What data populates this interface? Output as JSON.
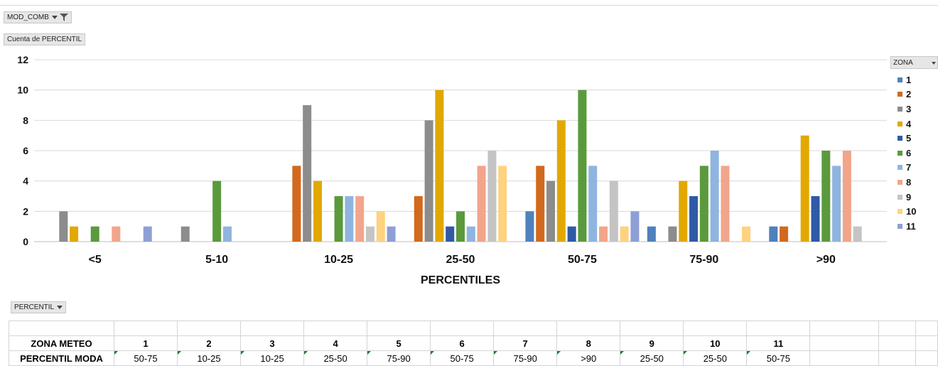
{
  "filter_button": {
    "label": "MOD_COMB",
    "icon": "funnel-icon"
  },
  "value_field_button": {
    "label": "Cuenta de PERCENTIL"
  },
  "axis_field_button": {
    "label": "PERCENTIL"
  },
  "legend": {
    "title": "ZONA"
  },
  "chart_data": {
    "type": "bar",
    "xlabel": "PERCENTILES",
    "ylabel": "",
    "ylim": [
      0,
      12
    ],
    "yticks": [
      0,
      2,
      4,
      6,
      8,
      10,
      12
    ],
    "grid": true,
    "legend_placement": "right",
    "categories": [
      "<5",
      "5-10",
      "10-25",
      "25-50",
      "50-75",
      "75-90",
      ">90"
    ],
    "series": [
      {
        "name": "1",
        "color": "#4f81bd",
        "values": [
          0,
          0,
          0,
          0,
          2,
          1,
          1
        ]
      },
      {
        "name": "2",
        "color": "#d2691e",
        "values": [
          0,
          0,
          5,
          3,
          5,
          0,
          1
        ]
      },
      {
        "name": "3",
        "color": "#8c8c8c",
        "values": [
          2,
          1,
          9,
          8,
          4,
          1,
          0
        ]
      },
      {
        "name": "4",
        "color": "#e2a800",
        "values": [
          1,
          0,
          4,
          10,
          8,
          4,
          7
        ]
      },
      {
        "name": "5",
        "color": "#2f5aa6",
        "values": [
          0,
          0,
          0,
          1,
          1,
          3,
          3
        ]
      },
      {
        "name": "6",
        "color": "#5a9a3c",
        "values": [
          1,
          4,
          3,
          2,
          10,
          5,
          6
        ]
      },
      {
        "name": "7",
        "color": "#8fb4e0",
        "values": [
          0,
          1,
          3,
          1,
          5,
          6,
          5
        ]
      },
      {
        "name": "8",
        "color": "#f2a58a",
        "values": [
          1,
          0,
          3,
          5,
          1,
          5,
          6
        ]
      },
      {
        "name": "9",
        "color": "#c4c4c4",
        "values": [
          0,
          0,
          1,
          6,
          4,
          0,
          1
        ]
      },
      {
        "name": "10",
        "color": "#ffd27f",
        "values": [
          0,
          0,
          2,
          5,
          1,
          1,
          0
        ]
      },
      {
        "name": "11",
        "color": "#8e9fd6",
        "values": [
          1,
          0,
          1,
          0,
          2,
          0,
          0
        ]
      }
    ]
  },
  "table": {
    "row1_header": "ZONA METEO",
    "row2_header": "PERCENTIL MODA",
    "zones": [
      "1",
      "2",
      "3",
      "4",
      "5",
      "6",
      "7",
      "8",
      "9",
      "10",
      "11"
    ],
    "moda": [
      "50-75",
      "10-25",
      "10-25",
      "25-50",
      "75-90",
      "50-75",
      "75-90",
      ">90",
      "25-50",
      "25-50",
      "50-75"
    ]
  }
}
